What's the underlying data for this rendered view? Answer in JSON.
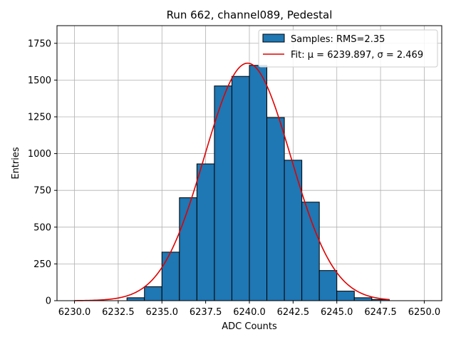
{
  "chart_data": {
    "type": "bar",
    "title": "Run 662, channel089, Pedestal",
    "xlabel": "ADC Counts",
    "ylabel": "Entries",
    "xlim": [
      6229.0,
      6251.0
    ],
    "ylim": [
      0,
      1870
    ],
    "xticks": [
      6230.0,
      6232.5,
      6235.0,
      6237.5,
      6240.0,
      6242.5,
      6245.0,
      6247.5,
      6250.0
    ],
    "xtick_labels": [
      "6230.0",
      "6232.5",
      "6235.0",
      "6237.5",
      "6240.0",
      "6242.5",
      "6245.0",
      "6247.5",
      "6250.0"
    ],
    "yticks": [
      0,
      250,
      500,
      750,
      1000,
      1250,
      1500,
      1750
    ],
    "ytick_labels": [
      "0",
      "250",
      "500",
      "750",
      "1000",
      "1250",
      "1500",
      "1750"
    ],
    "grid": true,
    "legend_position": "top-right",
    "bin_width": 1,
    "bins": [
      {
        "x": 6233,
        "value": 20
      },
      {
        "x": 6234,
        "value": 95
      },
      {
        "x": 6235,
        "value": 330
      },
      {
        "x": 6236,
        "value": 700
      },
      {
        "x": 6237,
        "value": 930
      },
      {
        "x": 6238,
        "value": 1460
      },
      {
        "x": 6239,
        "value": 1525
      },
      {
        "x": 6240,
        "value": 1600
      },
      {
        "x": 6241,
        "value": 1245
      },
      {
        "x": 6242,
        "value": 955
      },
      {
        "x": 6243,
        "value": 670
      },
      {
        "x": 6244,
        "value": 205
      },
      {
        "x": 6245,
        "value": 65
      },
      {
        "x": 6246,
        "value": 20
      },
      {
        "x": 6247,
        "value": 8
      }
    ],
    "fit": {
      "mu": 6239.897,
      "sigma": 2.469,
      "amplitude": 1615,
      "x_range": [
        6230.0,
        6248.0
      ]
    },
    "series": [
      {
        "name": "Samples: RMS=2.35",
        "color": "#1f77b4",
        "kind": "histogram"
      },
      {
        "name": "Fit: ",
        "name_math": "μ = 6239.897, σ = 2.469",
        "color": "#e00000",
        "kind": "line"
      }
    ]
  }
}
